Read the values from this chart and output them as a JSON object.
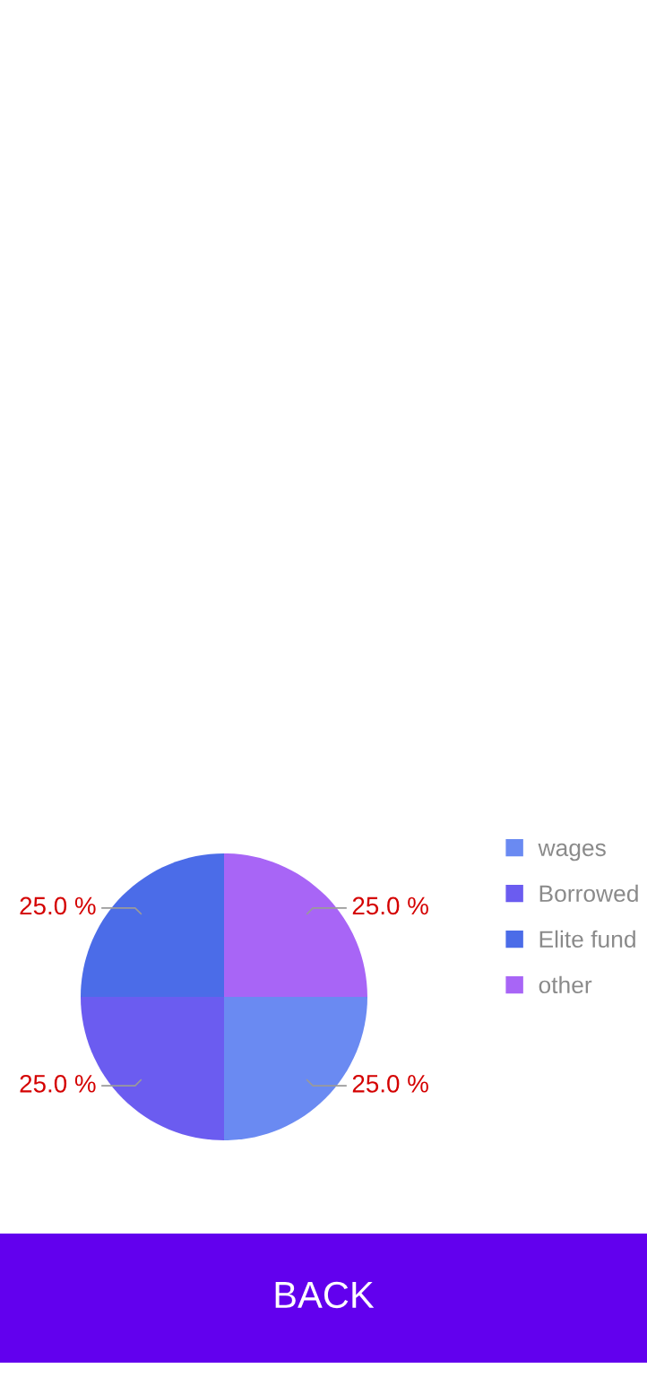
{
  "chart_data": {
    "type": "pie",
    "categories": [
      "wages",
      "Borrowed",
      "Elite fund",
      "other"
    ],
    "values": [
      25,
      25,
      25,
      25
    ],
    "colors": [
      "#6a8af2",
      "#6b5cf0",
      "#4b6ce8",
      "#a865f6"
    ],
    "value_labels": [
      "25.0 %",
      "25.0 %",
      "25.0 %",
      "25.0 %"
    ],
    "legend": "top right",
    "annotations": [
      "BACK"
    ]
  }
}
